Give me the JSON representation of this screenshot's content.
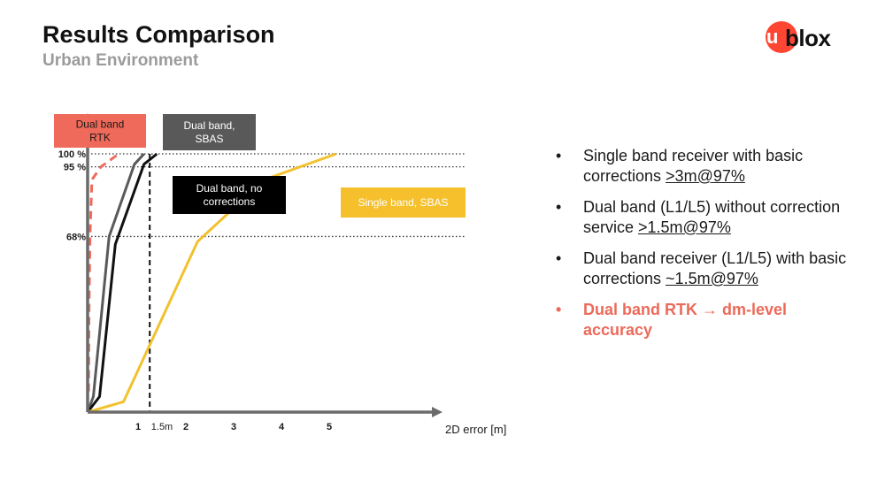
{
  "header": {
    "title": "Results Comparison",
    "subtitle": "Urban Environment",
    "logo_text": "blox",
    "logo_mark": "u",
    "brand_color": "#ff4632"
  },
  "bullets": [
    {
      "text": "Single band receiver with basic corrections ",
      "value": ">3m@97%"
    },
    {
      "text": "Dual band (L1/L5) without correction service ",
      "value": ">1.5m@97%"
    },
    {
      "text": "Dual band receiver (L1/L5) with basic corrections ",
      "value": "~1.5m@97%"
    },
    {
      "text": "Dual band RTK → dm-level accuracy",
      "value": ""
    }
  ],
  "chart_data": {
    "type": "line",
    "xlabel": "2D error [m]",
    "ylabel": "",
    "x_ticks": [
      1,
      1.5,
      2,
      3,
      4,
      5
    ],
    "x_tick_labels": [
      "1",
      "1.5m",
      "2",
      "3",
      "4",
      "5"
    ],
    "xlim": [
      0,
      5.4
    ],
    "y_ticks": [
      68,
      95,
      100
    ],
    "y_tick_labels": [
      "68%",
      "95 %",
      "100 %"
    ],
    "ylim": [
      0,
      100
    ],
    "reference_line": {
      "x": 1.3,
      "style": "dashed"
    },
    "grid": "dotted at y ticks",
    "series": [
      {
        "name": "Dual band RTK",
        "color": "#ef6a5a",
        "dash": true,
        "x": [
          0.02,
          0.03,
          0.05,
          0.09,
          0.28,
          0.65
        ],
        "y": [
          8,
          40,
          68,
          90,
          95,
          100
        ]
      },
      {
        "name": "Dual band, SBAS",
        "color": "#5a5a5a",
        "dash": false,
        "x": [
          0,
          0.12,
          0.45,
          0.98,
          1.18
        ],
        "y": [
          0,
          6,
          68,
          96,
          100
        ]
      },
      {
        "name": "Dual band, no corrections",
        "color": "#111111",
        "dash": false,
        "x": [
          0,
          0.25,
          0.58,
          1.18,
          1.45
        ],
        "y": [
          0,
          6,
          65,
          96,
          100
        ]
      },
      {
        "name": "Single band, SBAS",
        "color": "#f2c12e",
        "dash": false,
        "x": [
          0,
          0.75,
          2.3,
          3.7,
          5.2
        ],
        "y": [
          0,
          4,
          66,
          90,
          100
        ]
      }
    ],
    "legend_boxes": [
      {
        "lines": [
          "Dual band",
          "RTK"
        ],
        "bg": "#ef6a5a",
        "fg": "#1a1a1a"
      },
      {
        "lines": [
          "Dual band,",
          "SBAS"
        ],
        "bg": "#595959",
        "fg": "#ffffff"
      },
      {
        "lines": [
          "Dual band, no",
          "corrections"
        ],
        "bg": "#000000",
        "fg": "#ffffff"
      },
      {
        "lines": [
          "Single band, SBAS"
        ],
        "bg": "#f5c02c",
        "fg": "#ffffff"
      }
    ]
  }
}
